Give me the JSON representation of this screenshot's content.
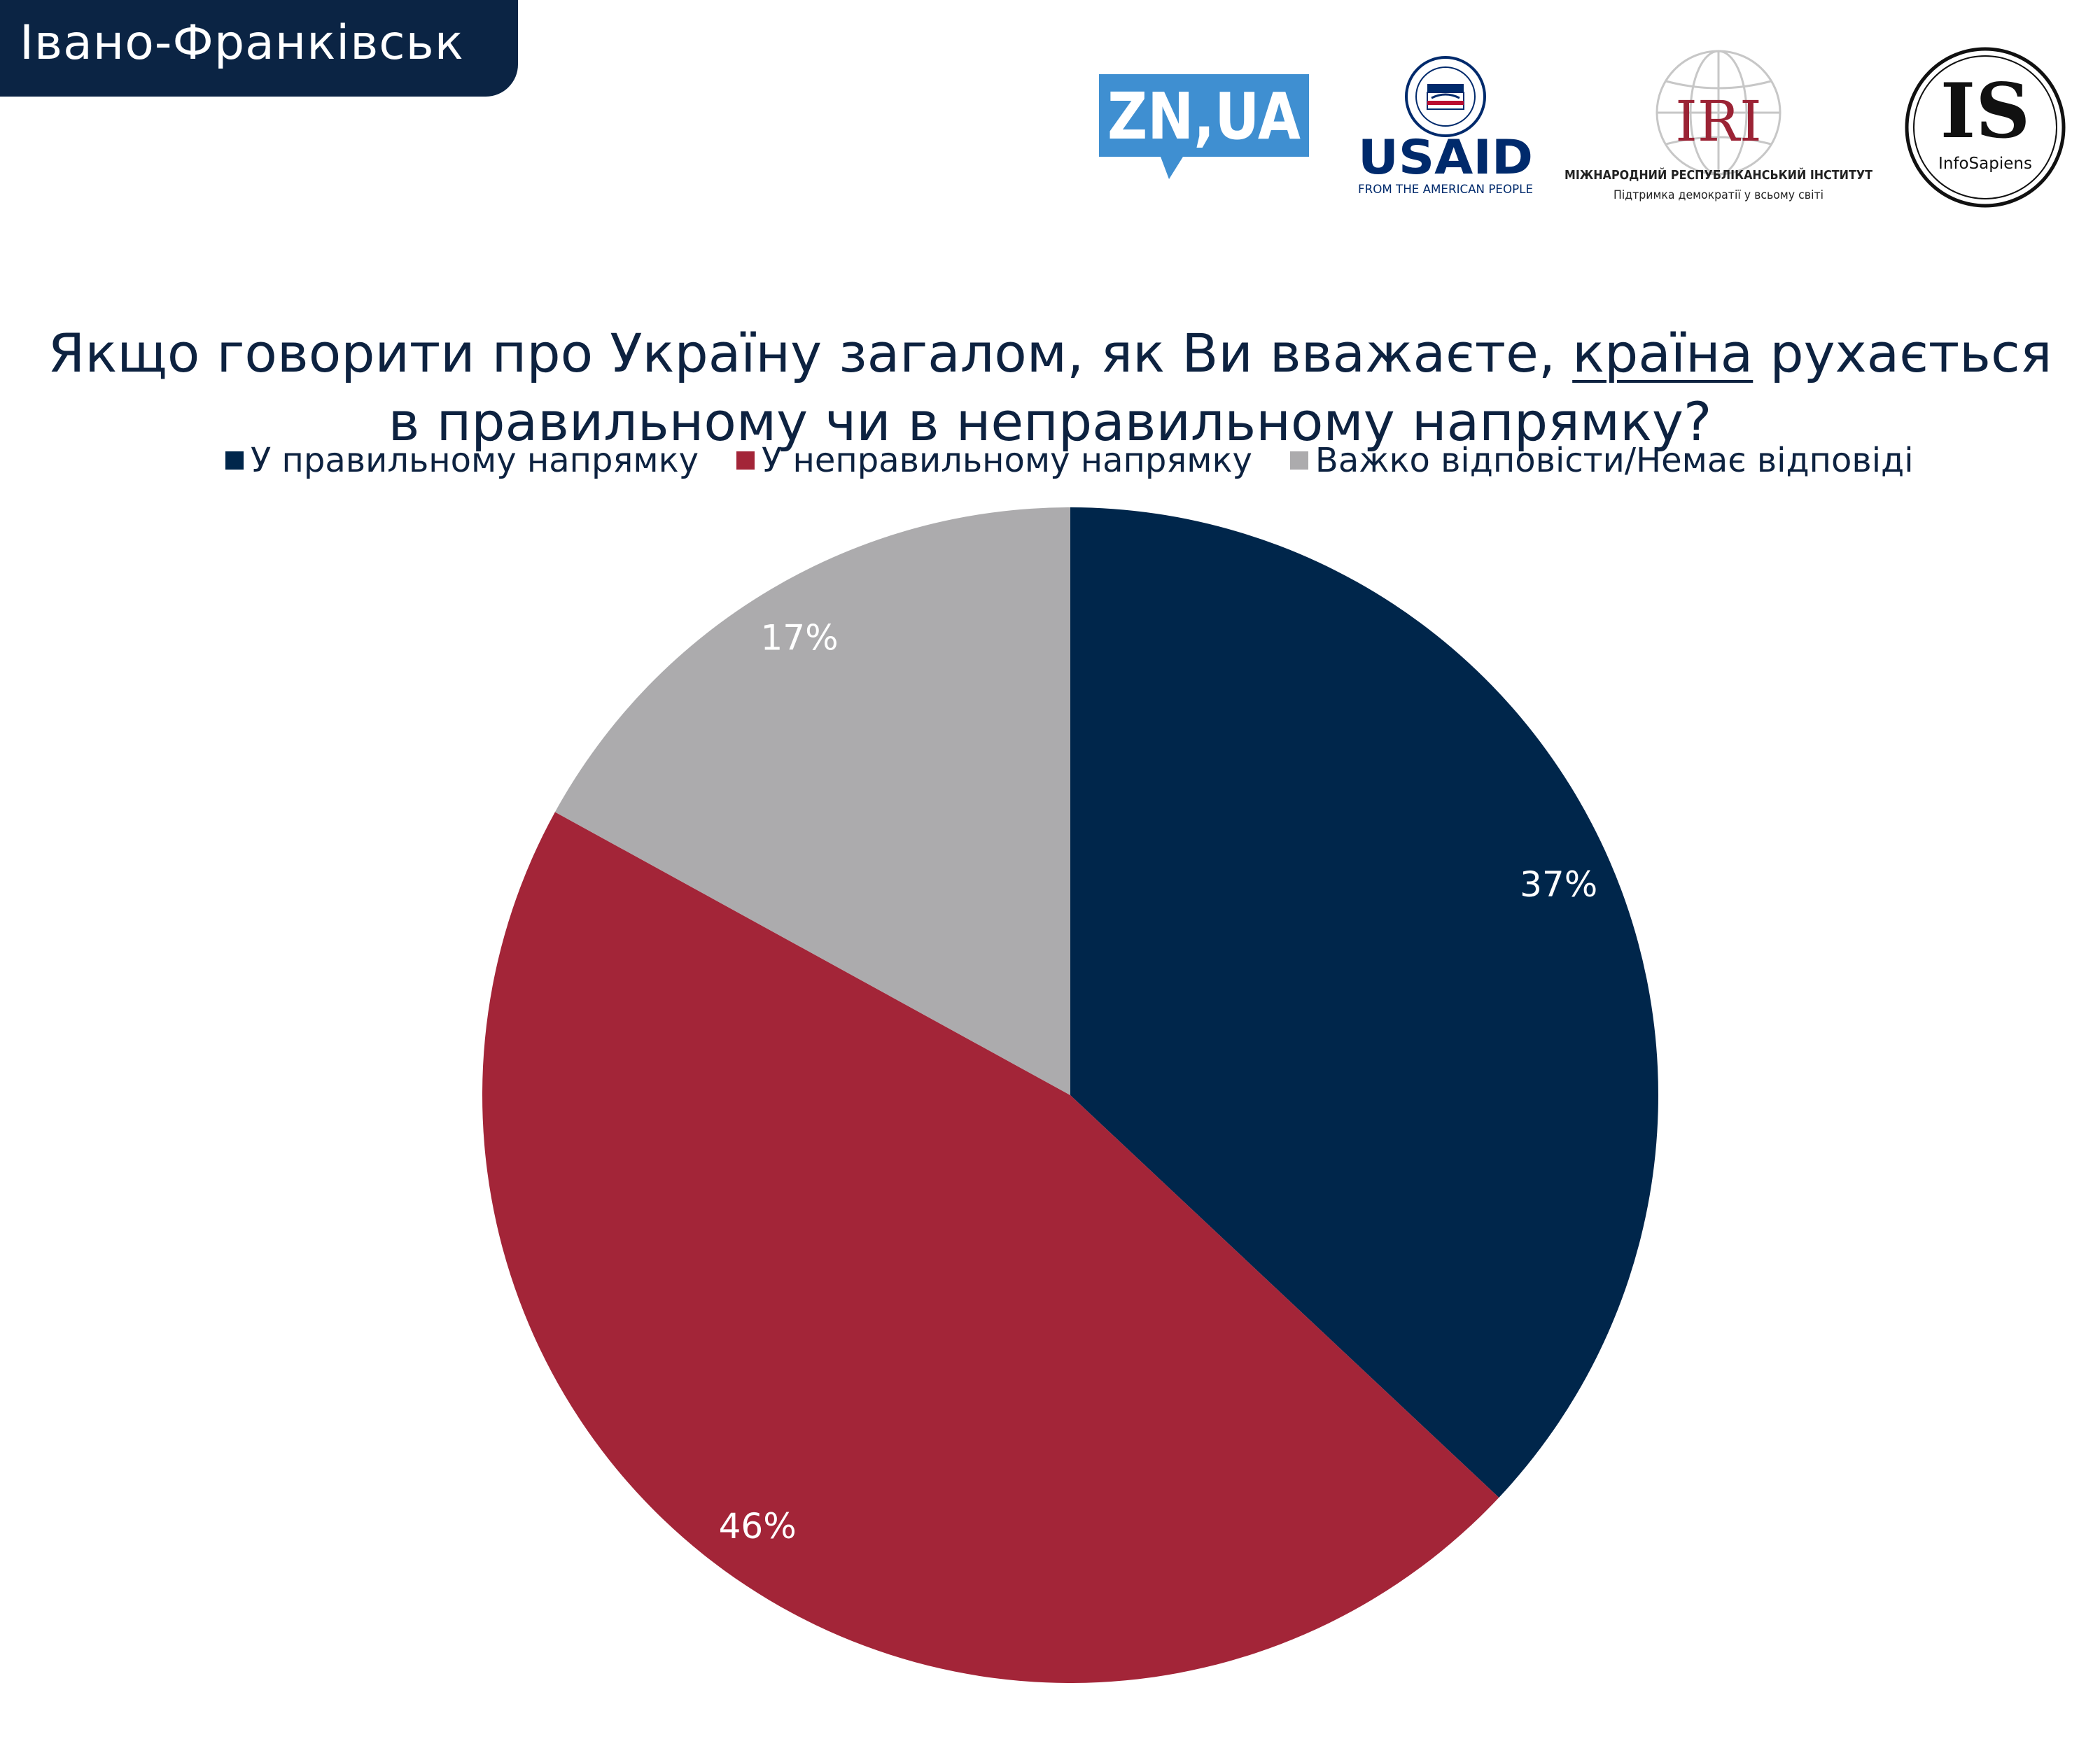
{
  "region": "Івано-Франківськ",
  "logos": {
    "zn": "ZN,UA",
    "usaid": "USAID",
    "usaid_tagline": "FROM THE AMERICAN PEOPLE",
    "iri": "IRI",
    "iri_name": "МІЖНАРОДНИЙ РЕСПУБЛІКАНСЬКИЙ ІНСТИТУТ",
    "iri_tagline": "Підтримка демократії у всьому світі",
    "is": "IS",
    "is_name": "InfoSapiens"
  },
  "question": {
    "line1_before": "Якщо говорити про Україну загалом, як Ви вважаєте, ",
    "line1_underlined": "країна",
    "line1_after": " рухається",
    "line2": "в правильному чи в неправильному напрямку?"
  },
  "chart_data": {
    "type": "pie",
    "title": "Якщо говорити про Україну загалом, як Ви вважаєте, країна рухається в правильному чи в неправильному напрямку?",
    "legend_position": "top",
    "start": "12 o'clock, clockwise",
    "slices": [
      {
        "name": "У правильному напрямку",
        "value": 37,
        "label": "37%",
        "color": "#00264b"
      },
      {
        "name": "У неправильному напрямку",
        "value": 46,
        "label": "46%",
        "color": "#a32538"
      },
      {
        "name": "Важко відповісти/Немає відповіді",
        "value": 17,
        "label": "17%",
        "color": "#acabad"
      }
    ]
  },
  "colors": {
    "navy": "#0b2444",
    "title_text": "#0d2240",
    "zn_blue": "#3f8fd1",
    "usaid_navy": "#002a6c",
    "usaid_red": "#ba0c2f",
    "iri_red": "#9b2335"
  }
}
